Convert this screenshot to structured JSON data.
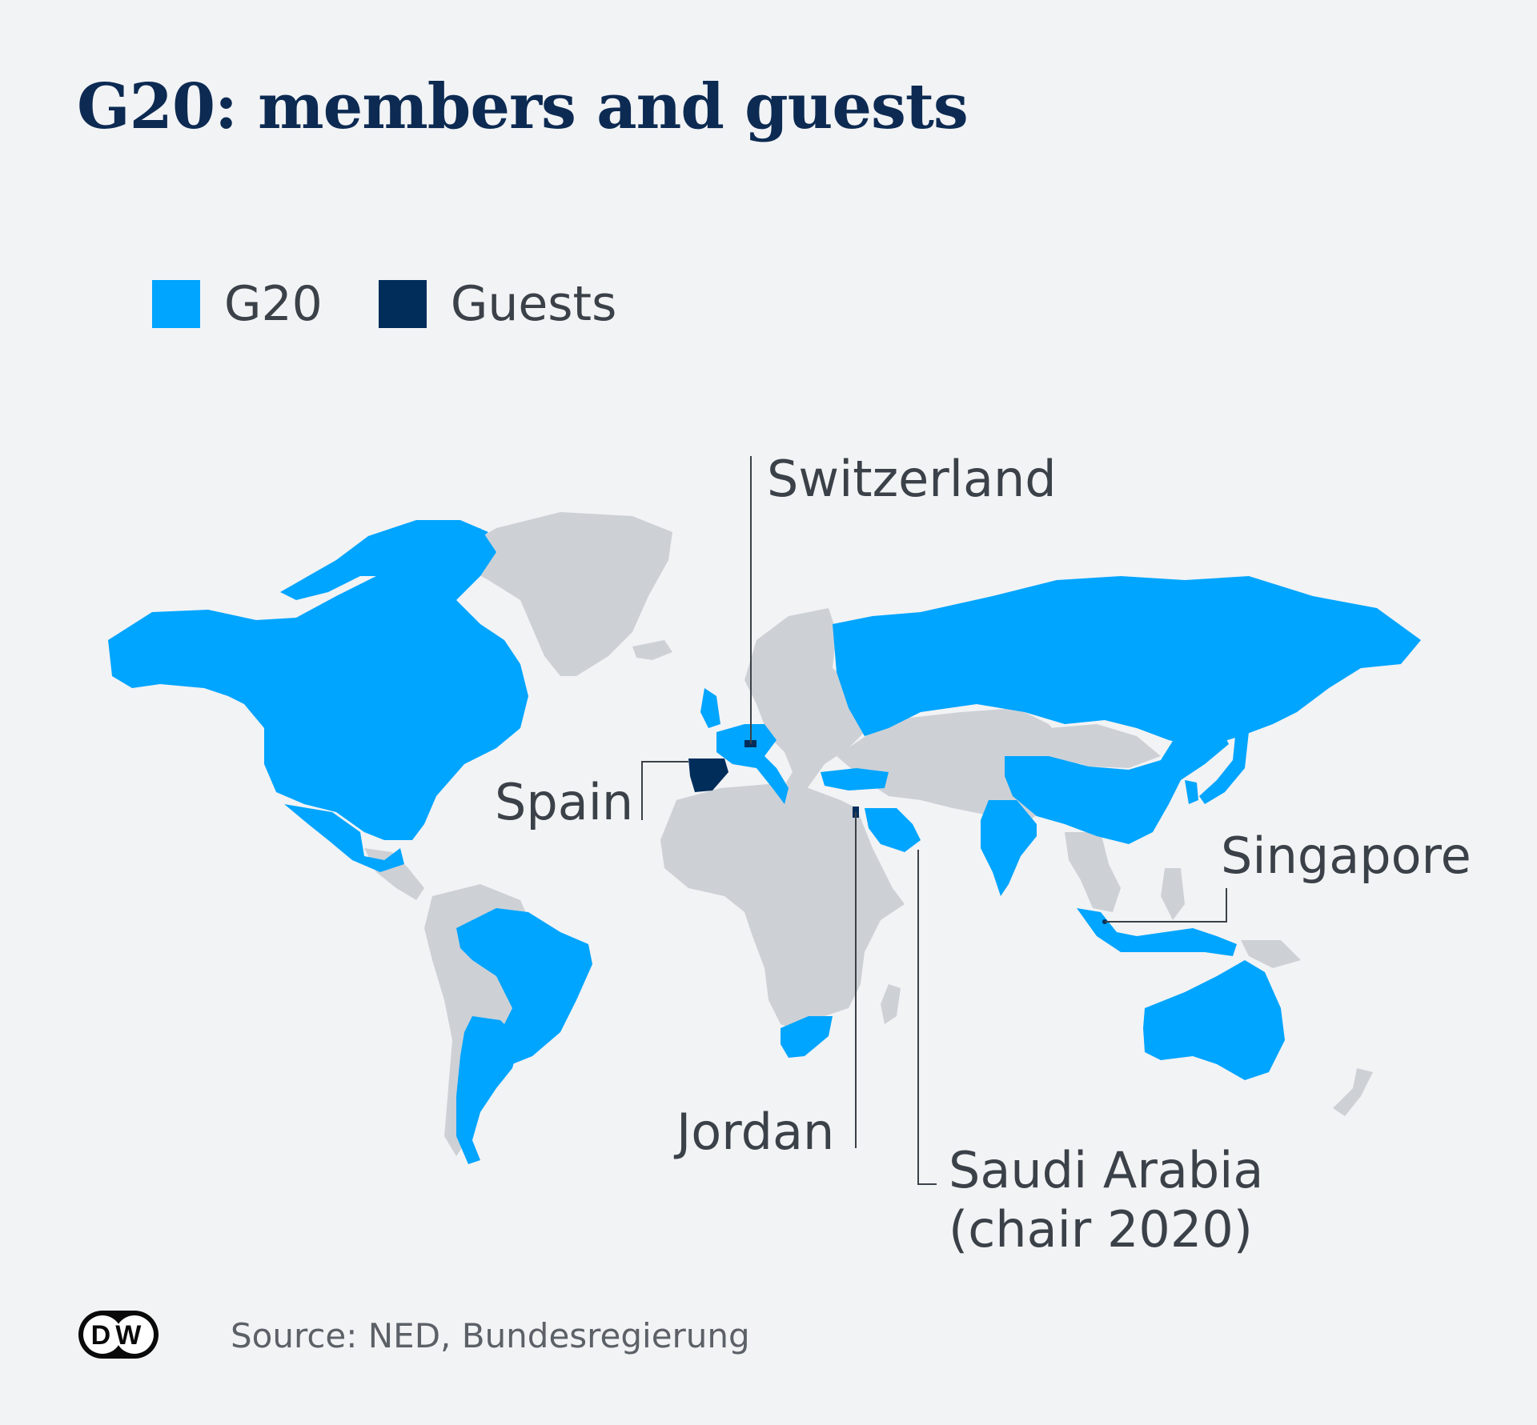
{
  "title": "G20: members and guests",
  "legend": [
    {
      "label": "G20",
      "color": "#00a5ff"
    },
    {
      "label": "Guests",
      "color": "#002d5a"
    }
  ],
  "colors": {
    "other_countries": "#cdd1d6",
    "background": "#f2f3f5",
    "leader": "#3b4148"
  },
  "annotations": {
    "switzerland": "Switzerland",
    "spain": "Spain",
    "singapore": "Singapore",
    "jordan": "Jordan",
    "saudi_line1": "Saudi Arabia",
    "saudi_line2": "(chair 2020)"
  },
  "source": "Source: NED, Bundesregierung",
  "logo_text": "DW"
}
